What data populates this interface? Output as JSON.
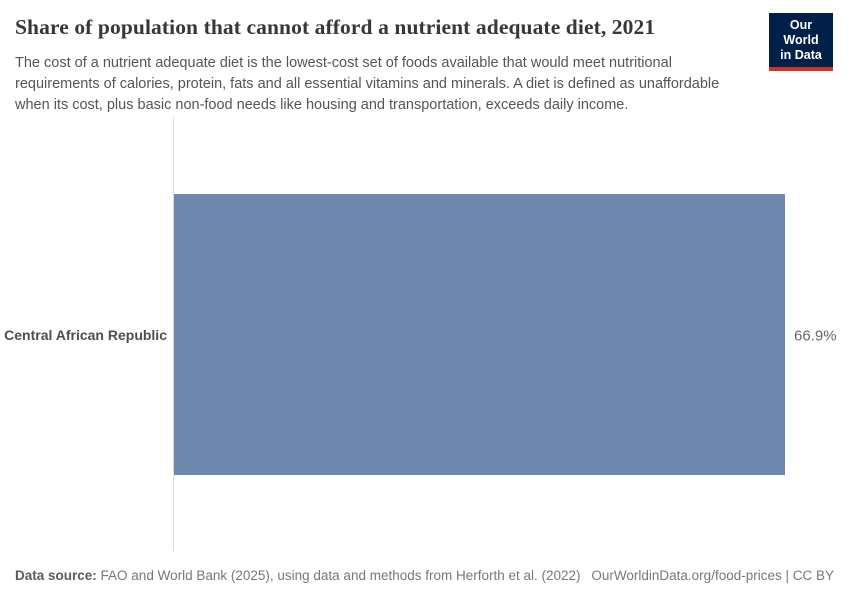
{
  "logo": {
    "line1": "Our World",
    "line2": "in Data"
  },
  "chart_data": {
    "type": "bar",
    "orientation": "horizontal",
    "title": "Share of population that cannot afford a nutrient adequate diet, 2021",
    "subtitle": "The cost of a nutrient adequate diet is the lowest-cost set of foods available that would meet nutritional requirements of calories, protein, fats and all essential vitamins and minerals. A diet is defined as unaffordable when its cost, plus basic non-food needs like housing and transportation, exceeds daily income.",
    "categories": [
      "Central African Republic"
    ],
    "values": [
      66.9
    ],
    "value_labels": [
      "66.9%"
    ],
    "unit": "%",
    "xlim": [
      0,
      66.9
    ],
    "grid": false,
    "legend": false,
    "xlabel": "",
    "ylabel": "",
    "bar_color": "#6e87ad"
  },
  "footer": {
    "source_label": "Data source:",
    "source_text": "FAO and World Bank (2025), using data and methods from Herforth et al. (2022)",
    "attribution": "OurWorldinData.org/food-prices | CC BY"
  },
  "colors": {
    "bar": "#6e87ad",
    "logo_navy": "#002147",
    "logo_red": "#d0332a",
    "axis_line": "#dedede",
    "title_text": "#383636",
    "subtitle_text": "#555555"
  }
}
